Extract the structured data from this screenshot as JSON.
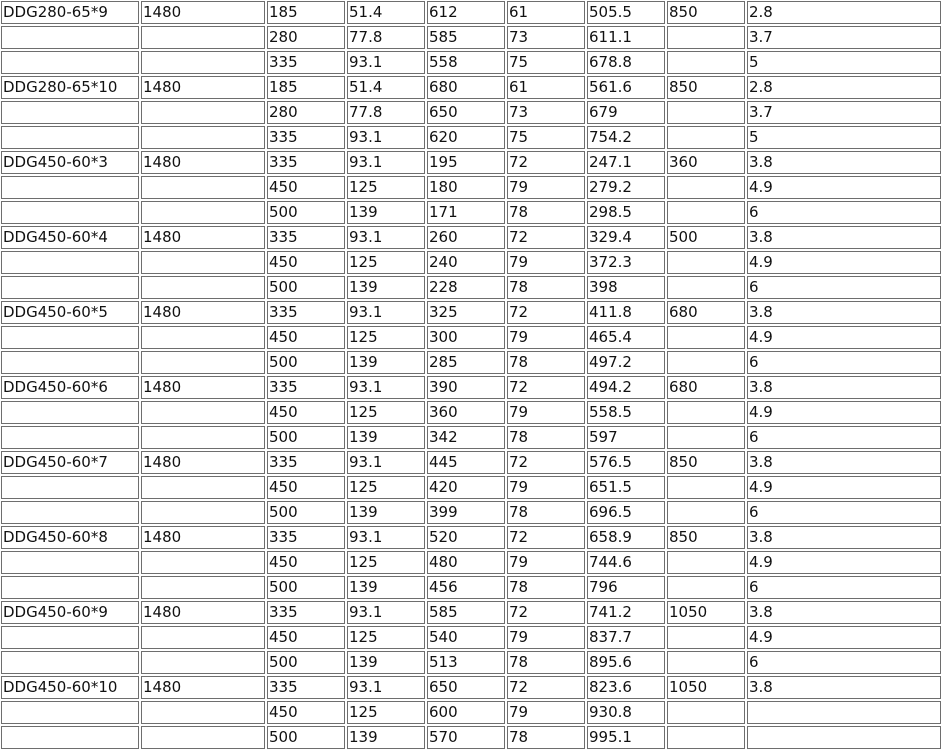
{
  "table": {
    "rows": [
      [
        "DDG280-65*9",
        "1480",
        "185",
        "51.4",
        "612",
        "61",
        "505.5",
        "850",
        "2.8"
      ],
      [
        "",
        "",
        "280",
        "77.8",
        "585",
        "73",
        "611.1",
        "",
        "3.7"
      ],
      [
        "",
        "",
        "335",
        "93.1",
        "558",
        "75",
        "678.8",
        "",
        "5"
      ],
      [
        "DDG280-65*10",
        "1480",
        "185",
        "51.4",
        "680",
        "61",
        "561.6",
        "850",
        "2.8"
      ],
      [
        "",
        "",
        "280",
        "77.8",
        "650",
        "73",
        "679",
        "",
        "3.7"
      ],
      [
        "",
        "",
        "335",
        "93.1",
        "620",
        "75",
        "754.2",
        "",
        "5"
      ],
      [
        "DDG450-60*3",
        "1480",
        "335",
        "93.1",
        "195",
        "72",
        "247.1",
        "360",
        "3.8"
      ],
      [
        "",
        "",
        "450",
        "125",
        "180",
        "79",
        "279.2",
        "",
        "4.9"
      ],
      [
        "",
        "",
        "500",
        "139",
        "171",
        "78",
        "298.5",
        "",
        "6"
      ],
      [
        "DDG450-60*4",
        "1480",
        "335",
        "93.1",
        "260",
        "72",
        "329.4",
        "500",
        "3.8"
      ],
      [
        "",
        "",
        "450",
        "125",
        "240",
        "79",
        "372.3",
        "",
        "4.9"
      ],
      [
        "",
        "",
        "500",
        "139",
        "228",
        "78",
        "398",
        "",
        "6"
      ],
      [
        "DDG450-60*5",
        "1480",
        "335",
        "93.1",
        "325",
        "72",
        "411.8",
        "680",
        "3.8"
      ],
      [
        "",
        "",
        "450",
        "125",
        "300",
        "79",
        "465.4",
        "",
        "4.9"
      ],
      [
        "",
        "",
        "500",
        "139",
        "285",
        "78",
        "497.2",
        "",
        "6"
      ],
      [
        "DDG450-60*6",
        "1480",
        "335",
        "93.1",
        "390",
        "72",
        "494.2",
        "680",
        "3.8"
      ],
      [
        "",
        "",
        "450",
        "125",
        "360",
        "79",
        "558.5",
        "",
        "4.9"
      ],
      [
        "",
        "",
        "500",
        "139",
        "342",
        "78",
        "597",
        "",
        "6"
      ],
      [
        "DDG450-60*7",
        "1480",
        "335",
        "93.1",
        "445",
        "72",
        "576.5",
        "850",
        "3.8"
      ],
      [
        "",
        "",
        "450",
        "125",
        "420",
        "79",
        "651.5",
        "",
        "4.9"
      ],
      [
        "",
        "",
        "500",
        "139",
        "399",
        "78",
        "696.5",
        "",
        "6"
      ],
      [
        "DDG450-60*8",
        "1480",
        "335",
        "93.1",
        "520",
        "72",
        "658.9",
        "850",
        "3.8"
      ],
      [
        "",
        "",
        "450",
        "125",
        "480",
        "79",
        "744.6",
        "",
        "4.9"
      ],
      [
        "",
        "",
        "500",
        "139",
        "456",
        "78",
        "796",
        "",
        "6"
      ],
      [
        "DDG450-60*9",
        "1480",
        "335",
        "93.1",
        "585",
        "72",
        "741.2",
        "1050",
        "3.8"
      ],
      [
        "",
        "",
        "450",
        "125",
        "540",
        "79",
        "837.7",
        "",
        "4.9"
      ],
      [
        "",
        "",
        "500",
        "139",
        "513",
        "78",
        "895.6",
        "",
        "6"
      ],
      [
        "DDG450-60*10",
        "1480",
        "335",
        "93.1",
        "650",
        "72",
        "823.6",
        "1050",
        "3.8"
      ],
      [
        "",
        "",
        "450",
        "125",
        "600",
        "79",
        "930.8",
        "",
        ""
      ],
      [
        "",
        "",
        "500",
        "139",
        "570",
        "78",
        "995.1",
        "",
        ""
      ]
    ]
  }
}
